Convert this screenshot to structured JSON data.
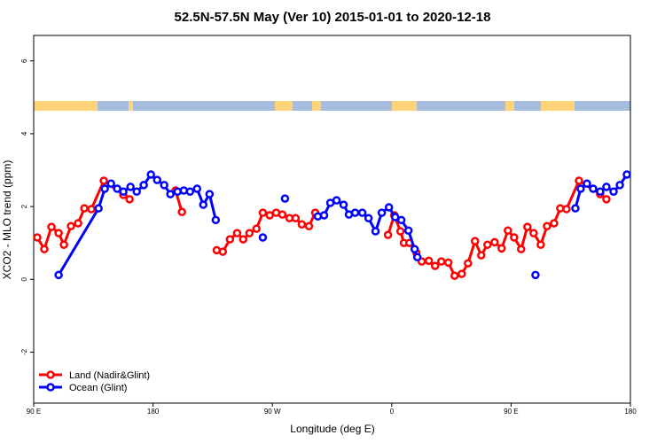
{
  "chart_data": {
    "type": "line",
    "title": "52.5N-57.5N May (Ver 10)   2015-01-01 to 2020-12-18",
    "x_label": "Longitude (deg E)",
    "y_label": "XCO2 - MLO trend (ppm)",
    "xlim": [
      90,
      540
    ],
    "ylim": [
      -3.4,
      6.7
    ],
    "xticks": [
      {
        "value": 90,
        "label": "90 E"
      },
      {
        "value": 180,
        "label": "180"
      },
      {
        "value": 270,
        "label": "90 W"
      },
      {
        "value": 360,
        "label": "0"
      },
      {
        "value": 450,
        "label": "90 E"
      },
      {
        "value": 540,
        "label": "180"
      }
    ],
    "yticks": [
      -2,
      0,
      2,
      4,
      6
    ],
    "legend": "bottom-left",
    "series": [
      {
        "name": "Land (Nadir&Glint)",
        "color": "#ff0000",
        "x": [
          92.7,
          98,
          103.4,
          108.8,
          112.8,
          118.1,
          123.5,
          128.2,
          133.5,
          142.9,
          157.6,
          162.3,
          null,
          197,
          201.8,
          null,
          228,
          232.6,
          238,
          243.4,
          248,
          252.7,
          258,
          262.8,
          268,
          272.8,
          277.5,
          282.9,
          287.5,
          292.2,
          297.6,
          302.3,
          null,
          357.2,
          361.9,
          366.6,
          369.2,
          373.3,
          378.6,
          382.6,
          388,
          392.7,
          397.4,
          402.7,
          407.4,
          412.8,
          417.5,
          422.8,
          427.5,
          432.2,
          437.6,
          442.9,
          447.6,
          452.3,
          457.6,
          462.3,
          467,
          472.4,
          477.1,
          482.4,
          487.1,
          491.8,
          501.2,
          517.2,
          521.9
        ],
        "values": [
          1.15,
          0.83,
          1.44,
          1.27,
          0.95,
          1.46,
          1.54,
          1.95,
          1.93,
          2.71,
          2.32,
          2.2,
          null,
          2.44,
          1.85,
          null,
          0.8,
          0.76,
          1.1,
          1.27,
          1.1,
          1.27,
          1.39,
          1.83,
          1.76,
          1.83,
          1.78,
          1.68,
          1.68,
          1.51,
          1.46,
          1.83,
          null,
          1.22,
          1.76,
          1.32,
          1.0,
          1.0,
          0.73,
          0.49,
          0.51,
          0.37,
          0.49,
          0.46,
          0.1,
          0.15,
          0.44,
          1.05,
          0.66,
          0.95,
          1.02,
          0.85,
          1.34,
          1.15,
          0.83,
          1.44,
          1.27,
          0.95,
          1.46,
          1.54,
          1.95,
          1.93,
          2.71,
          2.34,
          2.2
        ]
      },
      {
        "name": "Ocean (Glint)",
        "color": "#0000ff",
        "x": [
          108.8,
          138.9,
          143.6,
          148.3,
          153,
          157.6,
          163,
          167.7,
          173,
          178.4,
          183.1,
          188.4,
          193.1,
          198.5,
          203.2,
          207.9,
          213.2,
          217.9,
          222.6,
          227.3,
          null,
          262.8,
          null,
          279.5,
          null,
          304.3,
          309,
          313.7,
          318.4,
          323.7,
          327.7,
          332.4,
          337.8,
          342.5,
          347.8,
          352.5,
          357.9,
          362.6,
          367.2,
          372.6,
          377.3,
          379.3,
          null,
          468.4,
          null,
          498.5,
          502.5,
          507.2,
          511.9,
          517.2,
          521.9,
          527.3,
          532,
          537.3
        ],
        "values": [
          0.12,
          1.95,
          2.49,
          2.63,
          2.49,
          2.41,
          2.54,
          2.41,
          2.59,
          2.88,
          2.73,
          2.59,
          2.34,
          2.41,
          2.44,
          2.41,
          2.49,
          2.05,
          2.34,
          1.63,
          null,
          1.15,
          null,
          2.22,
          null,
          1.73,
          1.76,
          2.1,
          2.17,
          2.05,
          1.78,
          1.83,
          1.83,
          1.68,
          1.32,
          1.83,
          1.98,
          1.71,
          1.63,
          1.34,
          0.83,
          0.61,
          null,
          0.12,
          null,
          1.95,
          2.49,
          2.63,
          2.49,
          2.41,
          2.54,
          2.41,
          2.59,
          2.88
        ]
      }
    ]
  }
}
